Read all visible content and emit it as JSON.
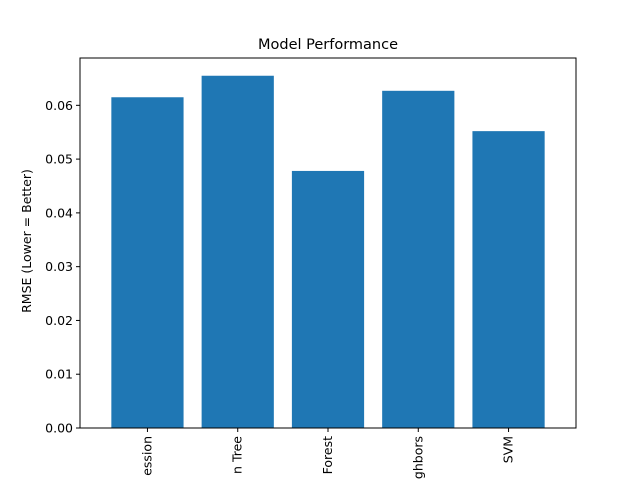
{
  "chart_data": {
    "type": "bar",
    "title": "Model Performance",
    "xlabel": "",
    "ylabel": "RMSE (Lower = Better)",
    "categories": [
      "ession",
      "n Tree",
      "Forest",
      "ghbors",
      "SVM"
    ],
    "values": [
      0.0615,
      0.0655,
      0.0478,
      0.0627,
      0.0552
    ],
    "ylim": [
      0,
      0.0688
    ],
    "yticks": [
      "0.00",
      "0.01",
      "0.02",
      "0.03",
      "0.04",
      "0.05",
      "0.06"
    ],
    "grid": false,
    "bar_color": "#1f77b4",
    "tick_label_rotation": "vertical"
  }
}
